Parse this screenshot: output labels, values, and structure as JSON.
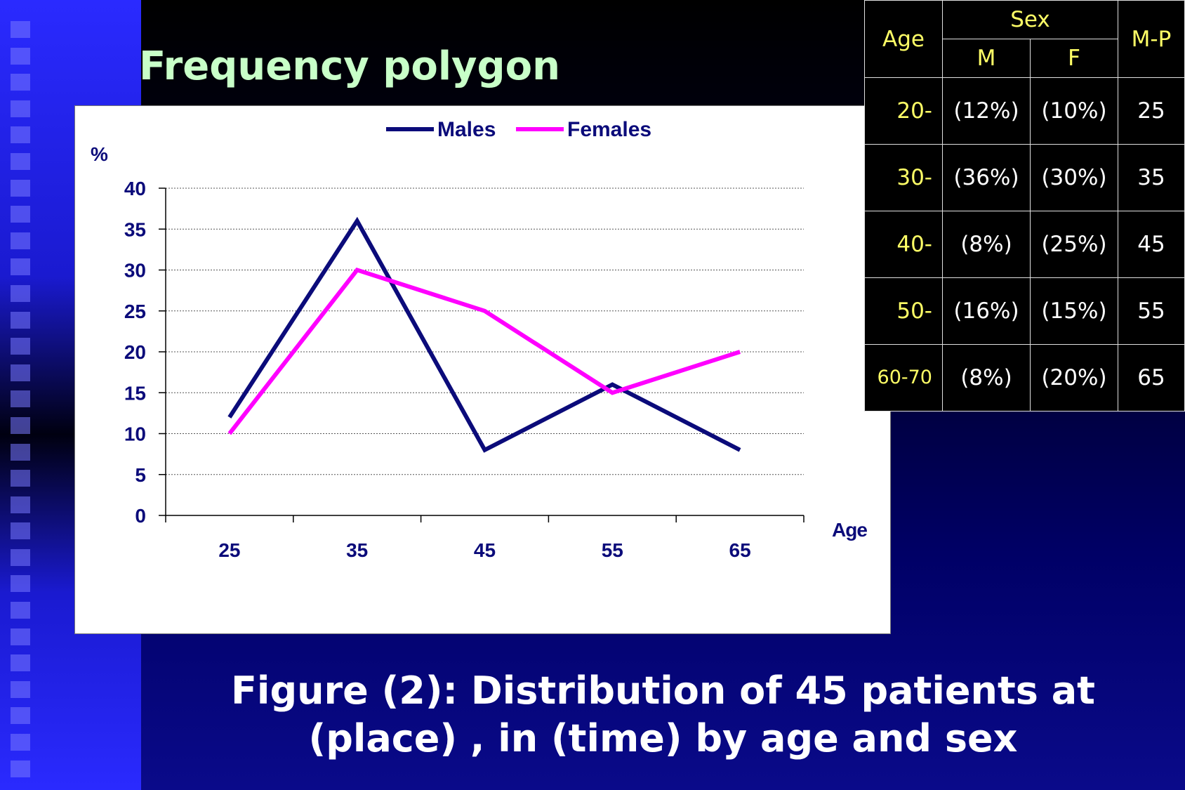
{
  "slide": {
    "title": "Frequency polygon",
    "caption_line1": "Figure (2): Distribution of 45 patients at",
    "caption_line2": "(place) , in (time)  by age and sex"
  },
  "table": {
    "header": {
      "age": "Age",
      "sex": "Sex",
      "m": "M",
      "f": "F",
      "mp": "M-P"
    },
    "rows": [
      {
        "age": "20-",
        "m": "(12%)",
        "f": "(10%)",
        "mp": "25"
      },
      {
        "age": "30-",
        "m": "(36%)",
        "f": "(30%)",
        "mp": "35"
      },
      {
        "age": "40-",
        "m": "(8%)",
        "f": "(25%)",
        "mp": "45"
      },
      {
        "age": "50-",
        "m": "(16%)",
        "f": "(15%)",
        "mp": "55"
      },
      {
        "age": "60-70",
        "m": "(8%)",
        "f": "(20%)",
        "mp": "65"
      }
    ]
  },
  "chart_data": {
    "type": "line",
    "title": "",
    "xlabel": "Age",
    "ylabel": "%",
    "categories": [
      "25",
      "35",
      "45",
      "55",
      "65"
    ],
    "ylim": [
      0,
      40
    ],
    "yticks": [
      "0",
      "5",
      "10",
      "15",
      "20",
      "25",
      "30",
      "35",
      "40"
    ],
    "grid": true,
    "legend_position": "top",
    "series": [
      {
        "name": "Males",
        "color": "#0b0b7a",
        "values": [
          12,
          36,
          8,
          16,
          8
        ]
      },
      {
        "name": "Females",
        "color": "#ff00ff",
        "values": [
          10,
          30,
          25,
          15,
          20
        ]
      }
    ]
  }
}
